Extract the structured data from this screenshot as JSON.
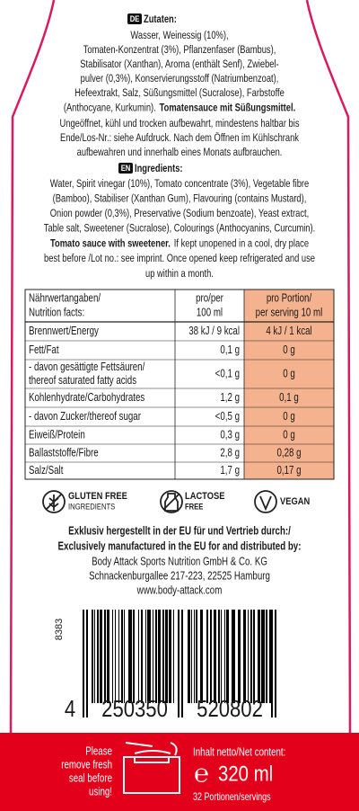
{
  "german": {
    "badge": "DE",
    "heading": "Zutaten:",
    "ingredients_lines": [
      "Wasser, Weinessig (10%),",
      "Tomaten-Konzentrat (3%), Pflanzenfaser (Bambus),",
      "Stabilisator (Xanthan), Aroma (enthält Senf), Zwiebel-",
      "pulver (0,3%), Konservierungsstoff (Natriumbenzoat),",
      "Hefeextrakt, Salz, Süßungsmittel (Sucralose), Farbstoffe"
    ],
    "ingredients_last": "(Anthocyane, Kurkumin).",
    "product_name": "Tomatensauce mit Süßungsmittel.",
    "storage_lines": [
      "Ungeöffnet, kühl und trocken aufbewahrt, mindestens haltbar bis",
      "Ende/Los-Nr.: siehe Aufdruck. Nach dem Öffnen im Kühlschrank",
      "aufbewahren und innerhalb eines Monats aufbrauchen."
    ]
  },
  "english": {
    "badge": "EN",
    "heading": "Ingredients:",
    "ingredients_lines": [
      "Water, Spirit vinegar (10%), Tomato concentrate (3%), Vegetable fibre",
      "(Bamboo), Stabiliser (Xanthan Gum), Flavouring (contains Mustard),",
      "Onion powder (0,3%), Preservative (Sodium benzoate), Yeast extract,",
      "Table salt, Sweetener (Sucralose), Colourings (Anthocyanins, Curcumin)."
    ],
    "product_name": "Tomato sauce with sweetener.",
    "storage_first": "If kept unopened in a cool, dry place",
    "storage_lines": [
      "best before /Lot no.: see imprint. Once opened keep refrigerated and use",
      "up within a month."
    ]
  },
  "nutrition_table": {
    "header": [
      [
        "Nährwertangaben/",
        "Nutrition facts:"
      ],
      [
        "pro/per",
        "100 ml"
      ],
      [
        "pro Portion/",
        "per serving 10 ml"
      ]
    ],
    "rows": [
      {
        "label": [
          "Brennwert/Energy"
        ],
        "per_100ml": "38 kJ / 9 kcal",
        "per_serving": "4 kJ / 1 kcal"
      },
      {
        "label": [
          "Fett/Fat"
        ],
        "per_100ml": "0,1 g",
        "per_serving": "0 g"
      },
      {
        "label": [
          "- davon gesättigte Fettsäuren/",
          "thereof saturated fatty acids"
        ],
        "per_100ml": "<0,1 g",
        "per_serving": "0 g"
      },
      {
        "label": [
          "Kohlenhydrate/Carbohydrates"
        ],
        "per_100ml": "1,2 g",
        "per_serving": "0,1 g"
      },
      {
        "label": [
          "- davon Zucker/thereof sugar"
        ],
        "per_100ml": "<0,5 g",
        "per_serving": "0 g"
      },
      {
        "label": [
          "Eiweiß/Protein"
        ],
        "per_100ml": "0,3 g",
        "per_serving": "0 g"
      },
      {
        "label": [
          "Ballaststoffe/Fibre"
        ],
        "per_100ml": "2,8 g",
        "per_serving": "0,28 g"
      },
      {
        "label": [
          "Salz/Salt"
        ],
        "per_100ml": "1,7 g",
        "per_serving": "0,17 g"
      }
    ]
  },
  "badges": [
    {
      "lines": [
        "GLUTEN FREE",
        "INGREDIENTS"
      ]
    },
    {
      "lines": [
        "LACTOSE",
        "FREE"
      ]
    },
    {
      "lines": [
        "VEGAN"
      ]
    }
  ],
  "distributor": {
    "bold_lines": [
      "Exklusiv hergestellt in der EU für und Vertrieb durch:/",
      "Exclusively manufactured in the EU for and distributed by:"
    ],
    "lines": [
      "Body Attack Sports Nutrition GmbH & Co. KG",
      "Schnackenburgallee 217-223, 22525 Hamburg",
      "www.body-attack.com"
    ]
  },
  "barcode": {
    "side_code": "8383",
    "digits": [
      "4",
      "250350",
      "520802"
    ]
  },
  "footer": {
    "seal_note": [
      "Please",
      "remove fresh",
      "seal before",
      "using!"
    ],
    "net_content_label": "Inhalt netto/Net content:",
    "estimated_sign": "℮",
    "net_content": "320 ml",
    "servings": "32 Portionen/servings"
  }
}
